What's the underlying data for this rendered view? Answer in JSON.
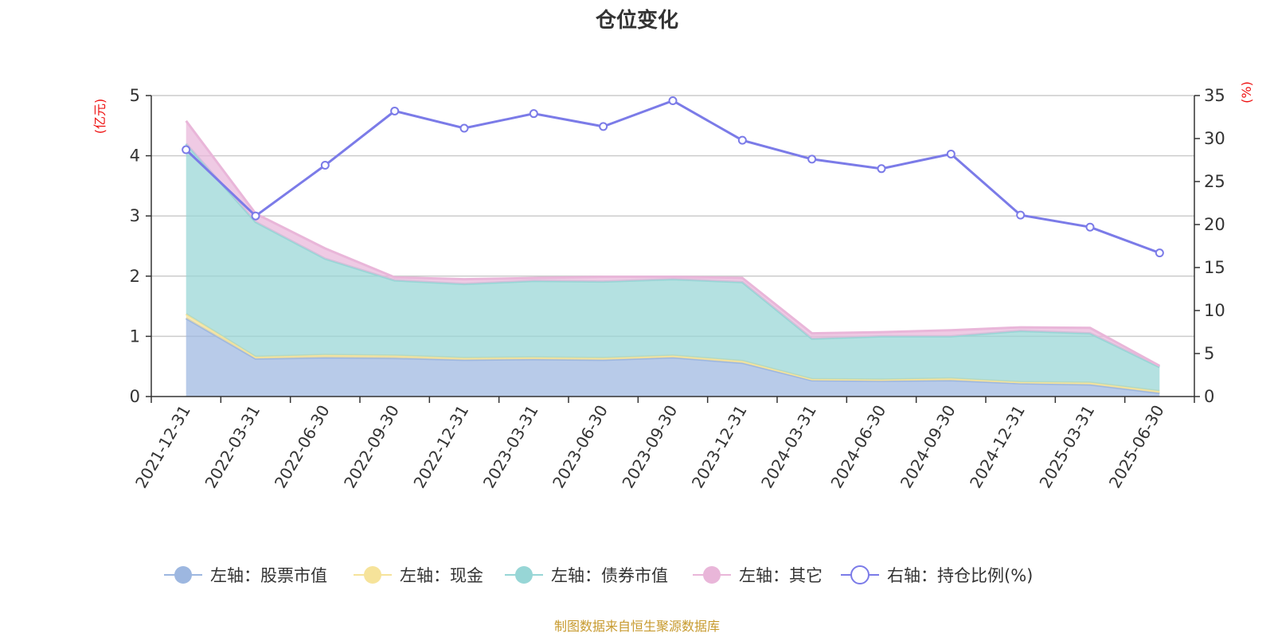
{
  "chart_data": {
    "type": "area",
    "title": "仓位变化",
    "left_unit": "(亿元)",
    "right_unit": "(%)",
    "categories": [
      "2021-12-31",
      "2022-03-31",
      "2022-06-30",
      "2022-09-30",
      "2022-12-31",
      "2023-03-31",
      "2023-06-30",
      "2023-09-30",
      "2023-12-31",
      "2024-03-31",
      "2024-06-30",
      "2024-09-30",
      "2024-12-31",
      "2025-03-31",
      "2025-06-30"
    ],
    "left_axis": {
      "min": 0,
      "max": 5,
      "ticks": [
        0,
        1,
        2,
        3,
        4,
        5
      ]
    },
    "right_axis": {
      "min": 0,
      "max": 35,
      "ticks": [
        0,
        5,
        10,
        15,
        20,
        25,
        30,
        35
      ]
    },
    "stacked_series": [
      {
        "name": "左轴：股票市值",
        "color": "#9db7e0",
        "values": [
          1.3,
          0.63,
          0.65,
          0.64,
          0.61,
          0.62,
          0.61,
          0.65,
          0.56,
          0.27,
          0.26,
          0.27,
          0.22,
          0.2,
          0.06
        ]
      },
      {
        "name": "左轴：现金",
        "color": "#f6e39a",
        "values": [
          0.07,
          0.03,
          0.04,
          0.04,
          0.03,
          0.03,
          0.03,
          0.03,
          0.03,
          0.02,
          0.02,
          0.03,
          0.02,
          0.03,
          0.03
        ]
      },
      {
        "name": "左轴：债券市值",
        "color": "#97d6d6",
        "values": [
          2.83,
          2.24,
          1.6,
          1.25,
          1.23,
          1.27,
          1.27,
          1.27,
          1.31,
          0.67,
          0.72,
          0.7,
          0.85,
          0.82,
          0.4
        ]
      },
      {
        "name": "左轴：其它",
        "color": "#e9b6d9",
        "values": [
          0.38,
          0.14,
          0.17,
          0.05,
          0.08,
          0.05,
          0.08,
          0.04,
          0.07,
          0.09,
          0.07,
          0.1,
          0.06,
          0.09,
          0.02
        ]
      }
    ],
    "line_series": {
      "name": "右轴：持仓比例(%)",
      "color": "#7b7be8",
      "values": [
        28.7,
        21.0,
        26.9,
        33.2,
        31.2,
        32.9,
        31.4,
        34.4,
        29.8,
        27.6,
        26.5,
        28.2,
        21.1,
        19.7,
        16.7
      ]
    },
    "grid": true,
    "legend_position": "bottom"
  },
  "footer": {
    "source": "制图数据来自恒生聚源数据库"
  }
}
